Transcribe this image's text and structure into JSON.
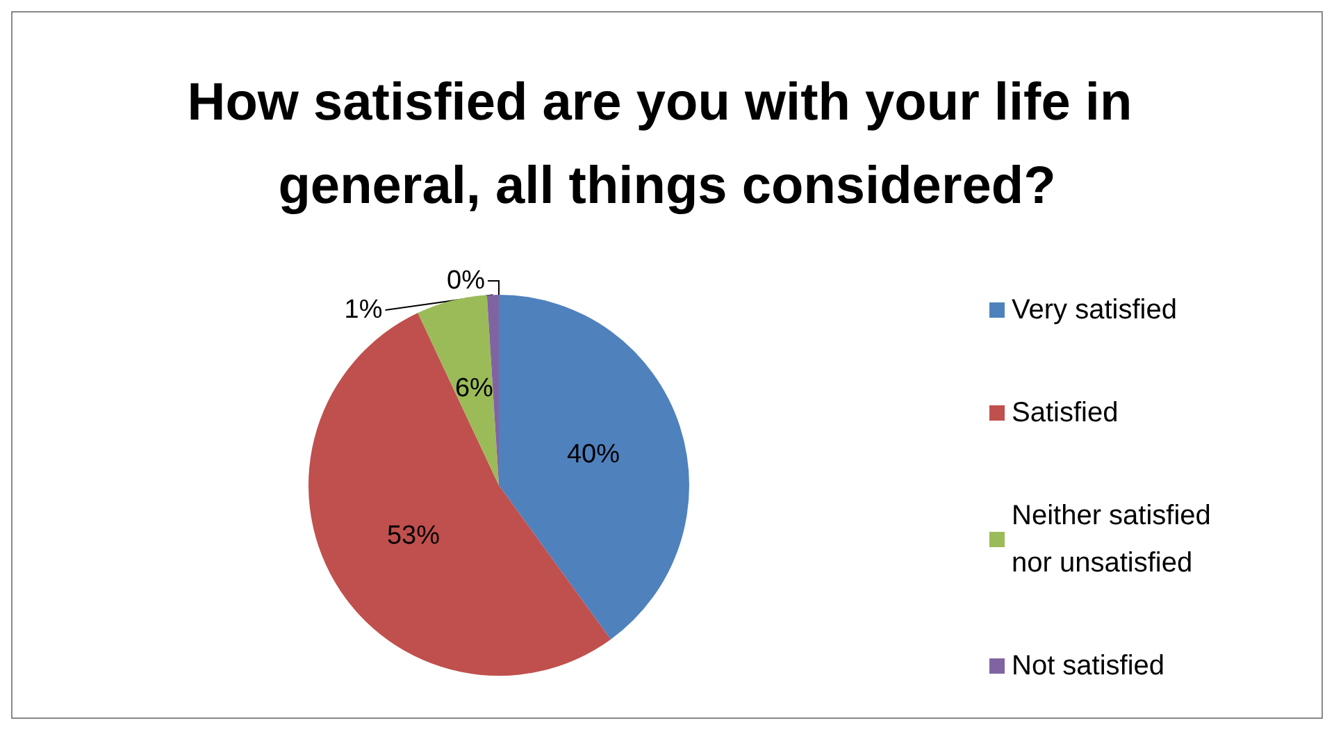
{
  "chart_data": {
    "type": "pie",
    "title": "How satisfied are you with your life in general, all things considered?",
    "categories": [
      "Very satisfied",
      "Satisfied",
      "Neither satisfied nor unsatisfied",
      "Not satisfied",
      null
    ],
    "values": [
      40,
      53,
      6,
      1,
      0
    ],
    "colors": [
      "#4f81bd",
      "#c0504d",
      "#9bbb59",
      "#8064a2",
      "#4bacc6"
    ],
    "value_labels": [
      "40%",
      "53%",
      "6%",
      "1%",
      "0%"
    ],
    "legend": "right"
  }
}
